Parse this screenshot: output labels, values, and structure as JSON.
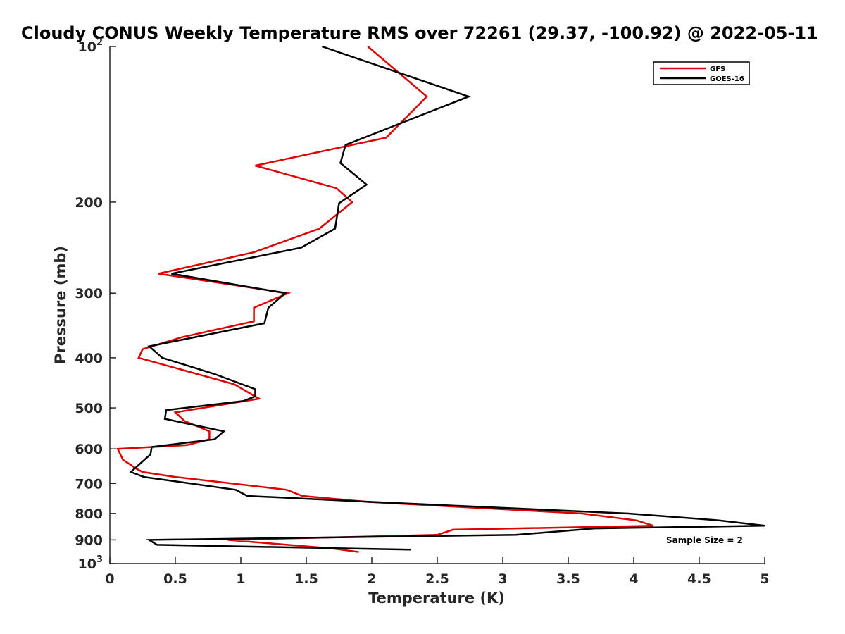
{
  "chart_data": {
    "type": "line",
    "title": "Cloudy CONUS Weekly Temperature RMS over 72261 (29.37, -100.92) @ 2022-05-11",
    "xlabel": "Temperature (K)",
    "ylabel": "Pressure (mb)",
    "xlim": [
      0,
      5
    ],
    "ylim": [
      100,
      1000
    ],
    "y_scale": "log",
    "y_reversed": true,
    "grid": false,
    "legend_position": "top-right",
    "x_ticks": [
      "0",
      "0.5",
      "1",
      "1.5",
      "2",
      "2.5",
      "3",
      "3.5",
      "4",
      "4.5",
      "5"
    ],
    "x_tick_values": [
      0,
      0.5,
      1,
      1.5,
      2,
      2.5,
      3,
      3.5,
      4,
      4.5,
      5
    ],
    "y_ticks": [
      {
        "value": 100,
        "base": "10",
        "exp": "2"
      },
      {
        "value": 200,
        "label": "200"
      },
      {
        "value": 300,
        "label": "300"
      },
      {
        "value": 400,
        "label": "400"
      },
      {
        "value": 500,
        "label": "500"
      },
      {
        "value": 600,
        "label": "600"
      },
      {
        "value": 700,
        "label": "700"
      },
      {
        "value": 800,
        "label": "800"
      },
      {
        "value": 900,
        "label": "900"
      },
      {
        "value": 1000,
        "base": "10",
        "exp": "3"
      }
    ],
    "annotation": "Sample Size = 2",
    "series": [
      {
        "name": "GFS",
        "color": "#e00000",
        "points": [
          [
            1.97,
            100
          ],
          [
            2.42,
            125
          ],
          [
            2.11,
            150
          ],
          [
            1.11,
            170
          ],
          [
            1.73,
            188
          ],
          [
            1.85,
            200
          ],
          [
            1.6,
            225
          ],
          [
            1.1,
            250
          ],
          [
            0.37,
            275
          ],
          [
            1.36,
            300
          ],
          [
            1.1,
            320
          ],
          [
            1.1,
            340
          ],
          [
            0.55,
            365
          ],
          [
            0.25,
            385
          ],
          [
            0.22,
            400
          ],
          [
            0.95,
            450
          ],
          [
            1.14,
            480
          ],
          [
            0.5,
            510
          ],
          [
            0.57,
            530
          ],
          [
            0.76,
            555
          ],
          [
            0.76,
            575
          ],
          [
            0.59,
            590
          ],
          [
            0.06,
            600
          ],
          [
            0.1,
            630
          ],
          [
            0.2,
            655
          ],
          [
            0.25,
            665
          ],
          [
            0.5,
            680
          ],
          [
            1.35,
            720
          ],
          [
            1.47,
            740
          ],
          [
            1.97,
            760
          ],
          [
            3.6,
            800
          ],
          [
            4.02,
            825
          ],
          [
            4.15,
            845
          ],
          [
            2.62,
            860
          ],
          [
            2.5,
            880
          ],
          [
            0.9,
            900
          ],
          [
            1.7,
            935
          ],
          [
            1.9,
            950
          ]
        ]
      },
      {
        "name": "GOES-16",
        "color": "#000000",
        "points": [
          [
            1.62,
            100
          ],
          [
            2.74,
            125
          ],
          [
            1.8,
            155
          ],
          [
            1.76,
            168
          ],
          [
            1.96,
            185
          ],
          [
            1.75,
            201
          ],
          [
            1.72,
            225
          ],
          [
            1.46,
            245
          ],
          [
            0.47,
            275
          ],
          [
            1.34,
            300
          ],
          [
            1.21,
            320
          ],
          [
            1.18,
            343
          ],
          [
            0.3,
            380
          ],
          [
            0.4,
            400
          ],
          [
            0.8,
            430
          ],
          [
            1.11,
            460
          ],
          [
            1.11,
            475
          ],
          [
            1.02,
            485
          ],
          [
            0.43,
            505
          ],
          [
            0.42,
            525
          ],
          [
            0.87,
            555
          ],
          [
            0.8,
            575
          ],
          [
            0.32,
            595
          ],
          [
            0.31,
            615
          ],
          [
            0.16,
            665
          ],
          [
            0.26,
            680
          ],
          [
            0.96,
            720
          ],
          [
            1.05,
            740
          ],
          [
            2.0,
            760
          ],
          [
            3.95,
            800
          ],
          [
            4.65,
            825
          ],
          [
            5.0,
            845
          ],
          [
            3.7,
            855
          ],
          [
            3.1,
            880
          ],
          [
            0.3,
            900
          ],
          [
            0.36,
            920
          ],
          [
            2.3,
            940
          ]
        ]
      }
    ]
  }
}
